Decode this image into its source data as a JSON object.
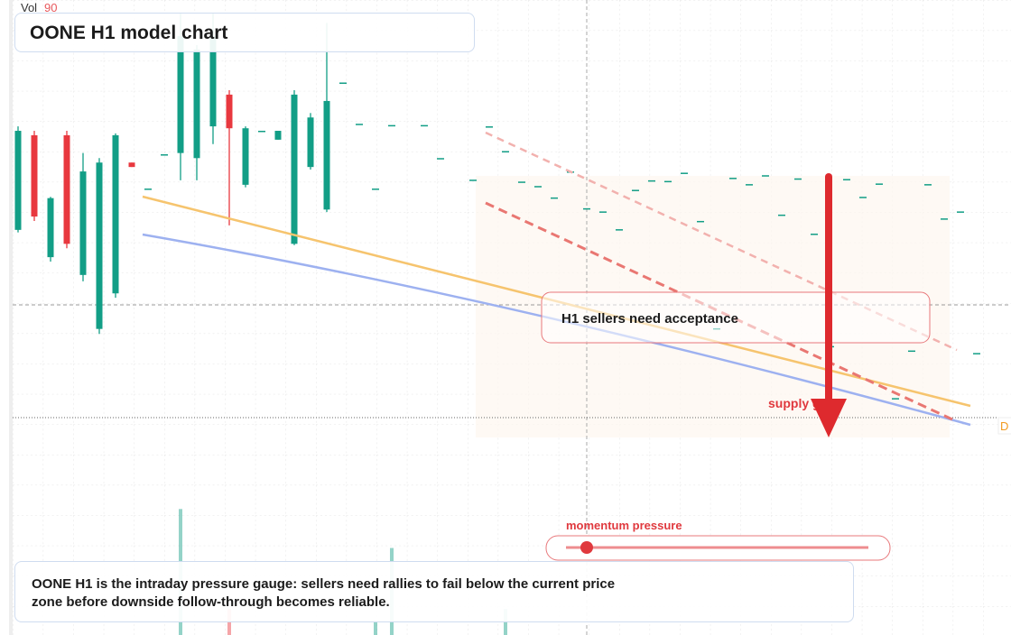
{
  "chart_data": {
    "type": "candlestick",
    "title": "OONE H1 model chart",
    "volume_label": "Vol",
    "volume_setting": 90,
    "callout": "H1 sellers need acceptance",
    "zone_label": "supply gate",
    "gauge_label": "momentum pressure",
    "note": "OONE H1 is the intraday pressure gauge: sellers need rallies to fail below the current price zone before downside follow-through becomes reliable.",
    "price_tag": "D",
    "up_color": "#129e86",
    "down_color": "#e8383f",
    "ylim": [
      0,
      100
    ],
    "volume_ylim": [
      0,
      100
    ],
    "open": [
      63.8,
      78.7,
      59.5,
      78.7,
      56.7,
      48.2,
      53.8,
      74.4,
      70.2,
      75.6,
      75.9,
      75.1,
      80.1,
      85.1,
      70.9,
      79.3,
      78.0,
      61.6,
      73.7,
      67.0,
      86.9,
      80.4,
      70.2,
      80.2,
      null,
      80.2,
      75.0,
      null,
      71.6,
      80.0,
      76.1,
      71.3,
      70.6,
      68.8,
      72.9,
      67.1,
      66.6,
      63.8,
      70.0,
      71.5,
      71.4,
      72.7,
      65.1,
      48.2,
      71.9,
      70.9,
      72.3,
      66.1,
      71.8,
      63.1,
      45.4,
      71.7,
      68.9,
      71.0,
      37.2,
      44.7,
      70.9,
      65.5,
      66.6,
      44.3
    ],
    "high": [
      80.1,
      79.4,
      69.0,
      79.4,
      75.9,
      75.1,
      79.0,
      74.4,
      70.2,
      75.6,
      97.9,
      92.9,
      97.9,
      85.8,
      80.1,
      79.3,
      79.4,
      85.8,
      82.2,
      96.4,
      86.9,
      80.4,
      70.2,
      80.2,
      null,
      80.2,
      75.0,
      null,
      71.6,
      80.0,
      76.1,
      71.3,
      70.6,
      68.8,
      72.9,
      67.1,
      66.6,
      63.8,
      70.0,
      71.5,
      71.4,
      72.7,
      65.1,
      48.2,
      71.9,
      70.9,
      72.3,
      66.1,
      71.8,
      63.1,
      45.4,
      71.7,
      68.9,
      71.0,
      37.2,
      44.7,
      70.9,
      65.5,
      66.6,
      44.3
    ],
    "low": [
      63.4,
      65.2,
      58.8,
      60.9,
      55.7,
      47.4,
      53.1,
      73.7,
      70.2,
      75.6,
      71.6,
      71.6,
      77.3,
      64.5,
      70.5,
      79.3,
      78.0,
      61.4,
      73.3,
      66.6,
      86.9,
      80.4,
      70.2,
      80.2,
      null,
      80.2,
      75.0,
      null,
      71.6,
      80.0,
      76.1,
      71.3,
      70.6,
      68.8,
      72.9,
      67.1,
      66.6,
      63.8,
      70.0,
      71.5,
      71.4,
      72.7,
      65.1,
      48.2,
      71.9,
      70.9,
      72.3,
      66.1,
      71.8,
      63.1,
      45.4,
      71.7,
      68.9,
      71.0,
      37.2,
      44.7,
      70.9,
      65.5,
      66.6,
      44.3
    ],
    "close": [
      79.4,
      65.9,
      68.8,
      61.6,
      73.0,
      74.4,
      78.7,
      73.7,
      70.2,
      75.6,
      94.3,
      92.2,
      94.3,
      79.8,
      79.8,
      79.3,
      79.4,
      85.1,
      81.5,
      84.1,
      86.9,
      80.4,
      70.2,
      80.2,
      null,
      80.2,
      75.0,
      null,
      71.6,
      80.0,
      76.1,
      71.3,
      70.6,
      68.8,
      72.9,
      67.1,
      66.6,
      63.8,
      70.0,
      71.5,
      71.4,
      72.7,
      65.1,
      48.2,
      71.9,
      70.9,
      72.3,
      66.1,
      71.8,
      63.1,
      45.4,
      71.7,
      68.9,
      71.0,
      37.2,
      44.7,
      70.9,
      65.5,
      66.6,
      44.3
    ],
    "volume": [
      null,
      null,
      null,
      null,
      null,
      null,
      null,
      null,
      null,
      null,
      97,
      null,
      null,
      20,
      null,
      null,
      null,
      null,
      null,
      null,
      null,
      null,
      10,
      67,
      null,
      null,
      null,
      null,
      null,
      null,
      20,
      null,
      null,
      null,
      null,
      null,
      null,
      null,
      null,
      null,
      null,
      null,
      null,
      null,
      null,
      null,
      null,
      null,
      null,
      null,
      null,
      null,
      null,
      null,
      null,
      null,
      null,
      null,
      null,
      null
    ]
  }
}
